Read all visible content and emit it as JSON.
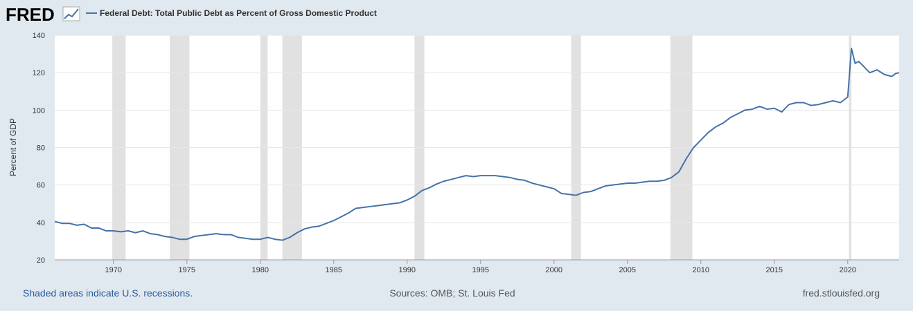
{
  "logo": "FRED",
  "chart_data": {
    "type": "line",
    "ylabel": "Percent of GDP",
    "xlim": [
      1966,
      2023.5
    ],
    "ylim": [
      20,
      140
    ],
    "xticks": [
      1970,
      1975,
      1980,
      1985,
      1990,
      1995,
      2000,
      2005,
      2010,
      2015,
      2020
    ],
    "yticks": [
      20,
      40,
      60,
      80,
      100,
      120,
      140
    ],
    "grid": true,
    "recessions": [
      [
        1969.92,
        1970.83
      ],
      [
        1973.83,
        1975.17
      ],
      [
        1980.0,
        1980.5
      ],
      [
        1981.5,
        1982.83
      ],
      [
        1990.5,
        1991.17
      ],
      [
        2001.17,
        2001.83
      ],
      [
        2007.92,
        2009.42
      ],
      [
        2020.08,
        2020.25
      ]
    ],
    "recession_color": "#e1e1e1",
    "x": [
      1966,
      1966.5,
      1967,
      1967.5,
      1968,
      1968.5,
      1969,
      1969.5,
      1970,
      1970.5,
      1971,
      1971.5,
      1972,
      1972.5,
      1973,
      1973.5,
      1974,
      1974.5,
      1975,
      1975.5,
      1976,
      1976.5,
      1977,
      1977.5,
      1978,
      1978.5,
      1979,
      1979.5,
      1980,
      1980.5,
      1981,
      1981.5,
      1982,
      1982.5,
      1983,
      1983.5,
      1984,
      1984.5,
      1985,
      1985.5,
      1986,
      1986.5,
      1987,
      1987.5,
      1988,
      1988.5,
      1989,
      1989.5,
      1990,
      1990.5,
      1991,
      1991.5,
      1992,
      1992.5,
      1993,
      1993.5,
      1994,
      1994.5,
      1995,
      1995.5,
      1996,
      1996.5,
      1997,
      1997.5,
      1998,
      1998.5,
      1999,
      1999.5,
      2000,
      2000.5,
      2001,
      2001.5,
      2002,
      2002.5,
      2003,
      2003.5,
      2004,
      2004.5,
      2005,
      2005.5,
      2006,
      2006.5,
      2007,
      2007.5,
      2008,
      2008.5,
      2009,
      2009.5,
      2010,
      2010.5,
      2011,
      2011.5,
      2012,
      2012.5,
      2013,
      2013.5,
      2014,
      2014.5,
      2015,
      2015.5,
      2016,
      2016.5,
      2017,
      2017.5,
      2018,
      2018.5,
      2019,
      2019.5,
      2020,
      2020.25,
      2020.5,
      2020.75,
      2021,
      2021.5,
      2022,
      2022.5,
      2023,
      2023.25,
      2023.5
    ],
    "series": [
      {
        "name": "Federal Debt: Total Public Debt as Percent of Gross Domestic Product",
        "color": "#4572a7",
        "values": [
          40.5,
          39.5,
          39.5,
          38.5,
          39,
          37,
          37,
          35.5,
          35.5,
          35,
          35.5,
          34.5,
          35.5,
          34,
          33.5,
          32.5,
          32,
          31,
          31,
          32.5,
          33,
          33.5,
          34,
          33.5,
          33.5,
          32,
          31.5,
          31,
          31,
          32,
          31,
          30.5,
          32,
          34.5,
          36.5,
          37.5,
          38,
          39.5,
          41,
          43,
          45,
          47.5,
          48,
          48.5,
          49,
          49.5,
          50,
          50.5,
          52,
          54,
          57,
          58.5,
          60.5,
          62,
          63,
          64,
          65,
          64.5,
          65,
          65,
          65,
          64.5,
          64,
          63,
          62.5,
          61,
          60,
          59,
          58,
          55.5,
          55,
          54.5,
          56,
          56.5,
          58,
          59.5,
          60,
          60.5,
          61,
          61,
          61.5,
          62,
          62,
          62.5,
          64,
          67,
          74,
          80,
          84,
          88,
          91,
          93,
          96,
          98,
          100,
          100.5,
          102,
          100.5,
          101,
          99,
          103,
          104,
          104,
          102.5,
          103,
          104,
          105,
          104,
          107,
          133,
          125,
          126,
          124,
          120,
          121.5,
          119,
          118,
          119.5,
          120
        ]
      }
    ]
  },
  "footer": {
    "note": "Shaded areas indicate U.S. recessions.",
    "sources": "Sources: OMB; St. Louis Fed",
    "site": "fred.stlouisfed.org"
  }
}
